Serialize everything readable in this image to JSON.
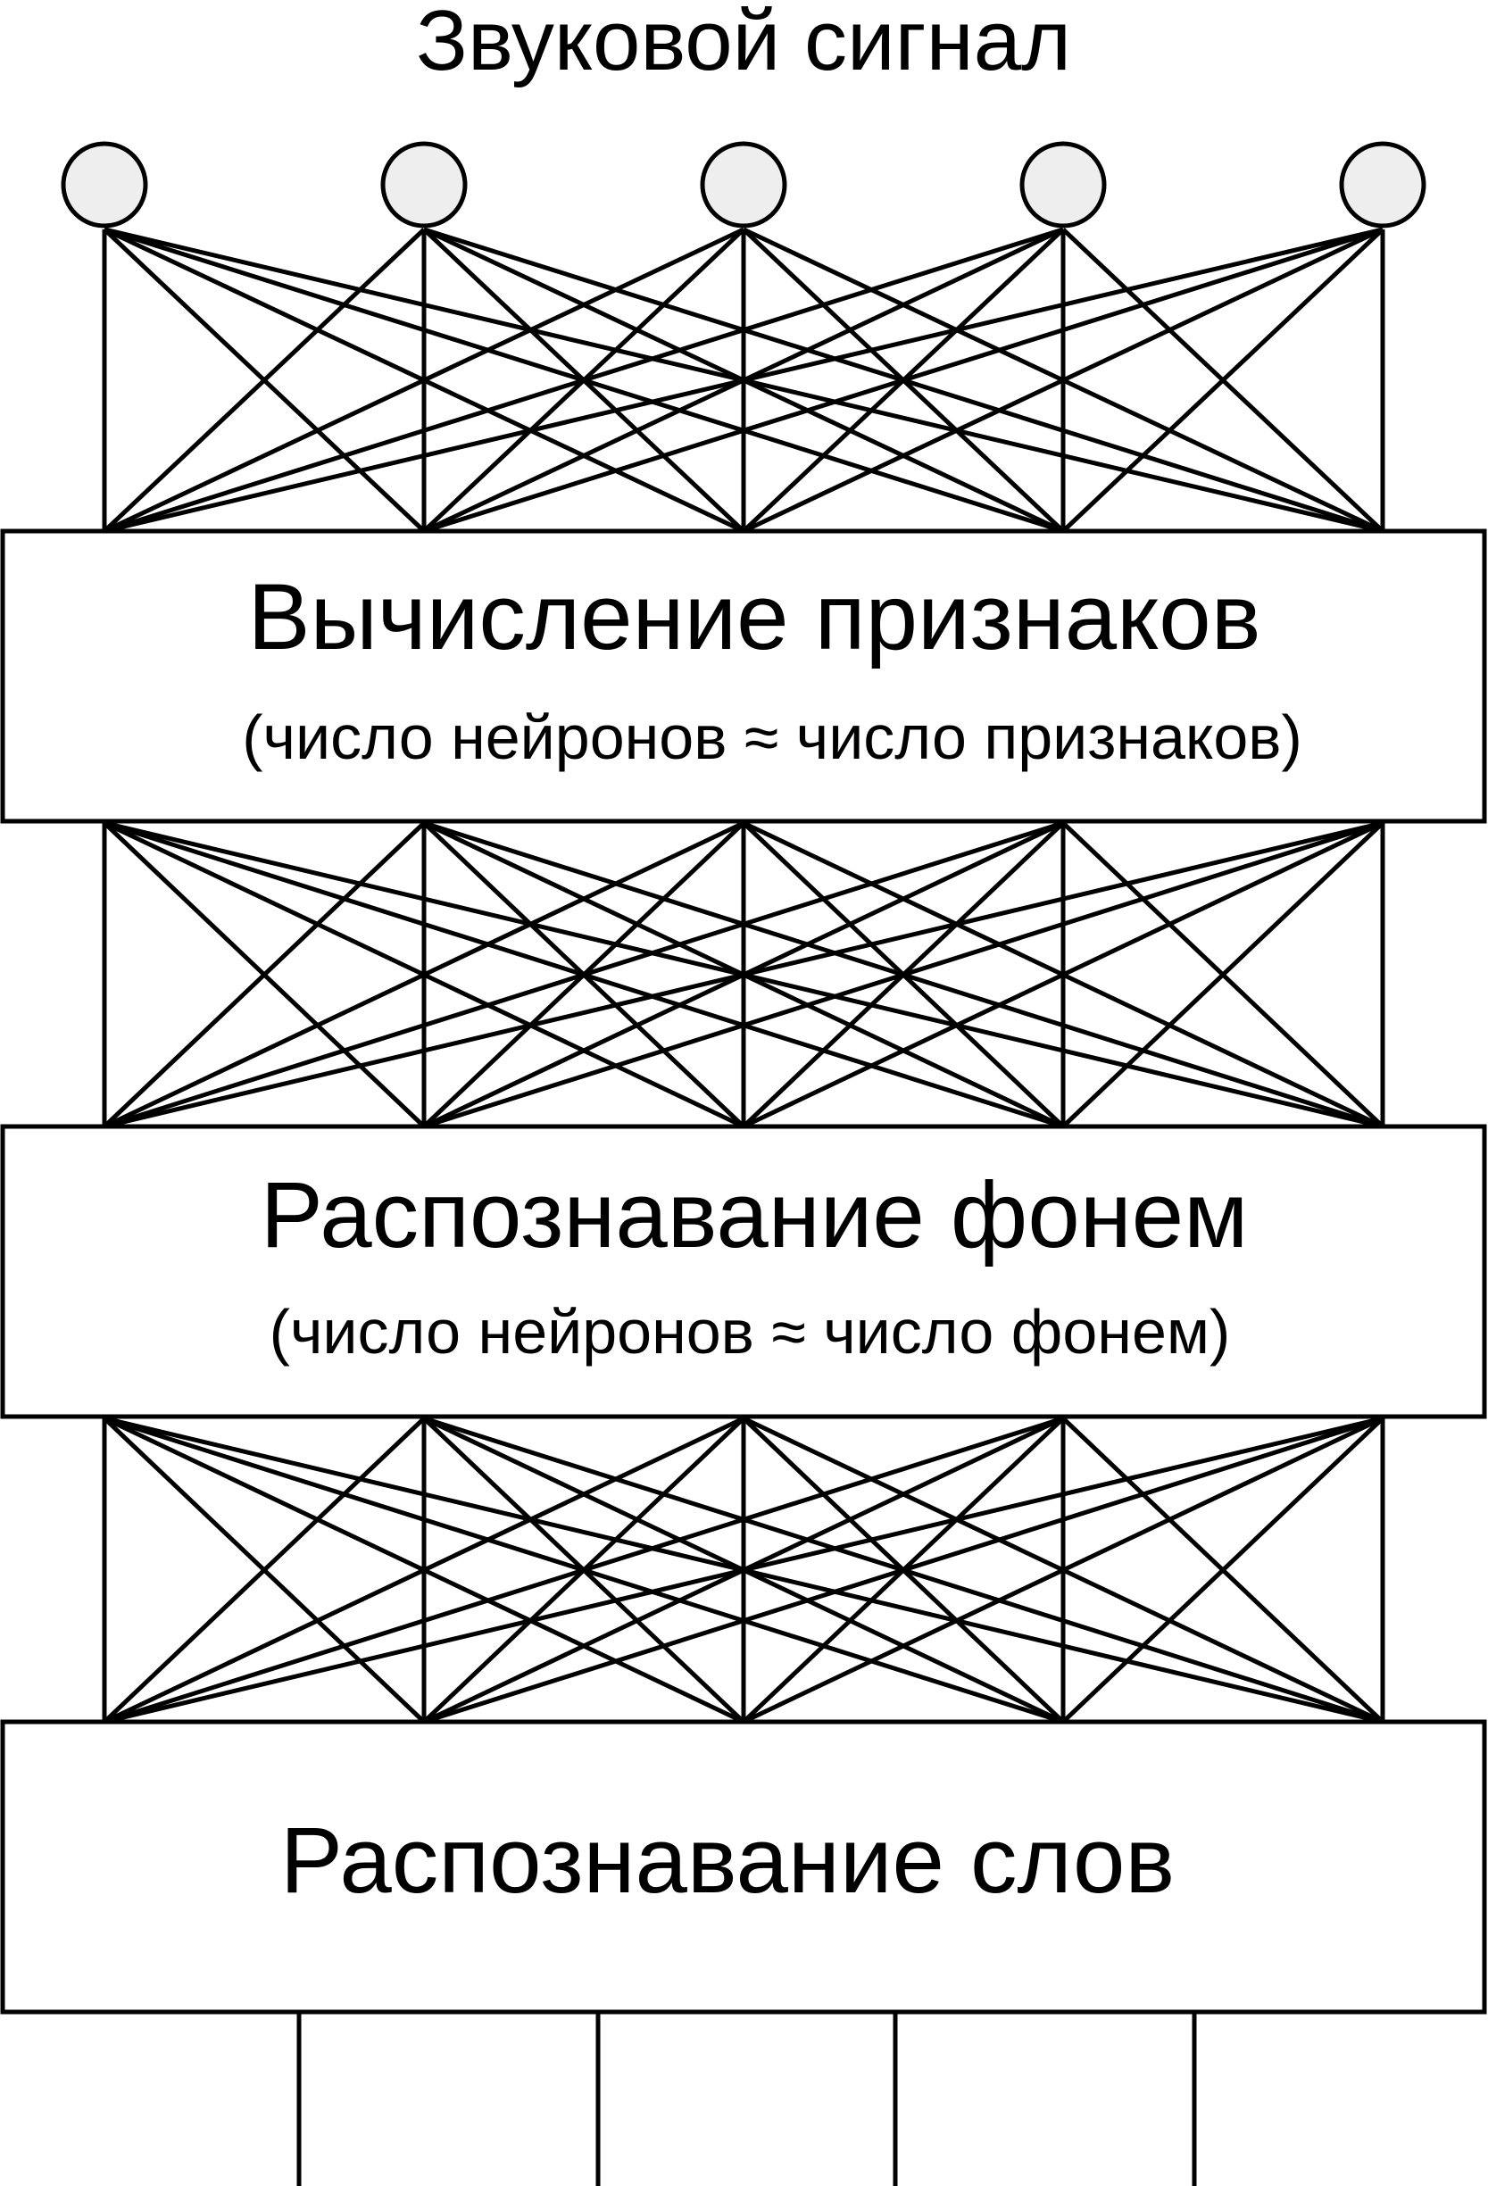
{
  "diagram": {
    "input_label": "Звуковой сигнал",
    "input_node_count": 5,
    "layers": [
      {
        "title": "Вычисление признаков",
        "subtitle": "(число нейронов ≈ число признаков)"
      },
      {
        "title": "Распознавание фонем",
        "subtitle": "(число нейронов ≈ число фонем)"
      },
      {
        "title": "Распознавание слов",
        "subtitle": ""
      }
    ],
    "connection_units_per_layer": 5,
    "output_line_count": 4
  },
  "colors": {
    "line": "#000000",
    "node_fill": "#eeeeee",
    "box_fill": "#ffffff"
  }
}
